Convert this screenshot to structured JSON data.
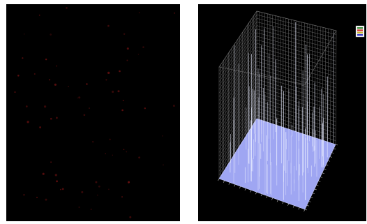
{
  "figure": {
    "left_panel": {
      "kind": "fluorescence-micrograph",
      "background_color": "#000000",
      "spot_color": "#6b1010"
    },
    "right_panel": {
      "kind": "3d-intensity-surface-plot",
      "background_color": "#000000",
      "mesh_color": "#bfbfbf",
      "surface_color": "#9fa6f2",
      "peak_color": "#e8ecff",
      "legend_colors": [
        "#3c8a3c",
        "#d23232",
        "#c8b432",
        "#3232c8"
      ]
    }
  }
}
